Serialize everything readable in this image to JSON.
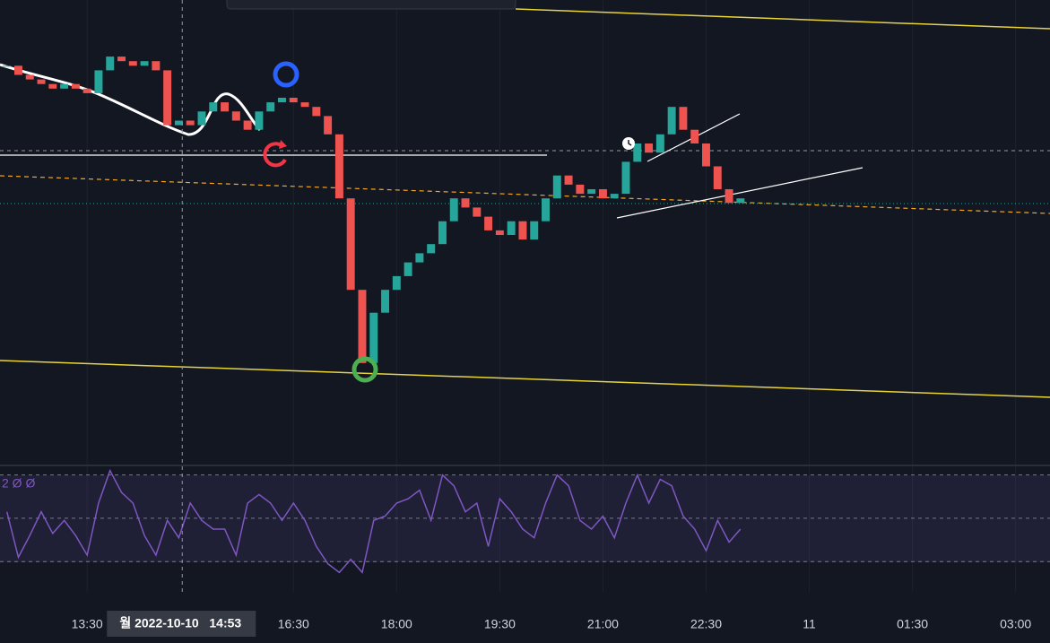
{
  "chart_data": {
    "type": "candlestick",
    "x": [
      "2022-10-10 12:20",
      "2022-10-10 12:30",
      "2022-10-10 12:40",
      "2022-10-10 12:50",
      "2022-10-10 13:00",
      "2022-10-10 13:10",
      "2022-10-10 13:20",
      "2022-10-10 13:30",
      "2022-10-10 13:40",
      "2022-10-10 13:50",
      "2022-10-10 14:00",
      "2022-10-10 14:10",
      "2022-10-10 14:20",
      "2022-10-10 14:30",
      "2022-10-10 14:40",
      "2022-10-10 14:50",
      "2022-10-10 15:00",
      "2022-10-10 15:10",
      "2022-10-10 15:20",
      "2022-10-10 15:30",
      "2022-10-10 15:40",
      "2022-10-10 15:50",
      "2022-10-10 16:00",
      "2022-10-10 16:10",
      "2022-10-10 16:20",
      "2022-10-10 16:30",
      "2022-10-10 16:40",
      "2022-10-10 16:50",
      "2022-10-10 17:00",
      "2022-10-10 17:10",
      "2022-10-10 17:20",
      "2022-10-10 17:30",
      "2022-10-10 17:40",
      "2022-10-10 17:50",
      "2022-10-10 18:00",
      "2022-10-10 18:10",
      "2022-10-10 18:20",
      "2022-10-10 18:30",
      "2022-10-10 18:40",
      "2022-10-10 18:50",
      "2022-10-10 19:00",
      "2022-10-10 19:10",
      "2022-10-10 19:20",
      "2022-10-10 19:30",
      "2022-10-10 19:40",
      "2022-10-10 19:50",
      "2022-10-10 20:00",
      "2022-10-10 20:10",
      "2022-10-10 20:20",
      "2022-10-10 20:30",
      "2022-10-10 20:40",
      "2022-10-10 20:50",
      "2022-10-10 21:00",
      "2022-10-10 21:10",
      "2022-10-10 21:20",
      "2022-10-10 21:30",
      "2022-10-10 21:40",
      "2022-10-10 21:50",
      "2022-10-10 22:00",
      "2022-10-10 22:10",
      "2022-10-10 22:20",
      "2022-10-10 22:30",
      "2022-10-10 22:40",
      "2022-10-10 22:50",
      "2022-10-10 23:00"
    ],
    "values": [
      87,
      85,
      84,
      83,
      82,
      83,
      82,
      81,
      86,
      89,
      88,
      87,
      88,
      86,
      74,
      75,
      74,
      77,
      79,
      77,
      75,
      73,
      77,
      79,
      80,
      79,
      78,
      76,
      72,
      58,
      38,
      22,
      33,
      38,
      41,
      44,
      46,
      48,
      53,
      58,
      56,
      54,
      51,
      50,
      53,
      49,
      53,
      58,
      63,
      61,
      59,
      60,
      58,
      59,
      66,
      70,
      68,
      72,
      78,
      73,
      70,
      65,
      60,
      57,
      58
    ],
    "up_color": "#26a69a",
    "down_color": "#ef5350",
    "ylim": [
      0,
      100
    ],
    "xlim": [
      "2022-10-10 12:14",
      "2022-10-11 03:30"
    ],
    "xticks": [
      {
        "value": "2022-10-10 13:30",
        "label": "13:30"
      },
      {
        "value": "2022-10-10 16:30",
        "label": "16:30"
      },
      {
        "value": "2022-10-10 18:00",
        "label": "18:00"
      },
      {
        "value": "2022-10-10 19:30",
        "label": "19:30"
      },
      {
        "value": "2022-10-10 21:00",
        "label": "21:00"
      },
      {
        "value": "2022-10-10 22:30",
        "label": "22:30"
      },
      {
        "value": "2022-10-11 00:00",
        "label": "11"
      },
      {
        "value": "2022-10-11 01:30",
        "label": "01:30"
      },
      {
        "value": "2022-10-11 03:00",
        "label": "03:00"
      }
    ],
    "crosshair": {
      "value": "2022-10-10 14:53",
      "label": "월 2022-10-10   14:53"
    },
    "rsi": {
      "label": "2 Ø Ø",
      "color": "#7e57c2",
      "ylim": [
        16,
        74
      ],
      "levels": [
        30,
        50,
        70
      ],
      "values": [
        53,
        32,
        42,
        53,
        43,
        49,
        42,
        33,
        57,
        72,
        62,
        57,
        42,
        33,
        49,
        41,
        57,
        49,
        45,
        45,
        33,
        57,
        61,
        57,
        49,
        57,
        49,
        37,
        29,
        25,
        31,
        25,
        49,
        51,
        57,
        59,
        63,
        49,
        70,
        65,
        53,
        57,
        37,
        59,
        53,
        45,
        41,
        57,
        70,
        65,
        49,
        45,
        51,
        41,
        57,
        70,
        57,
        68,
        65,
        51,
        45,
        35,
        49,
        39,
        45
      ]
    }
  }
}
